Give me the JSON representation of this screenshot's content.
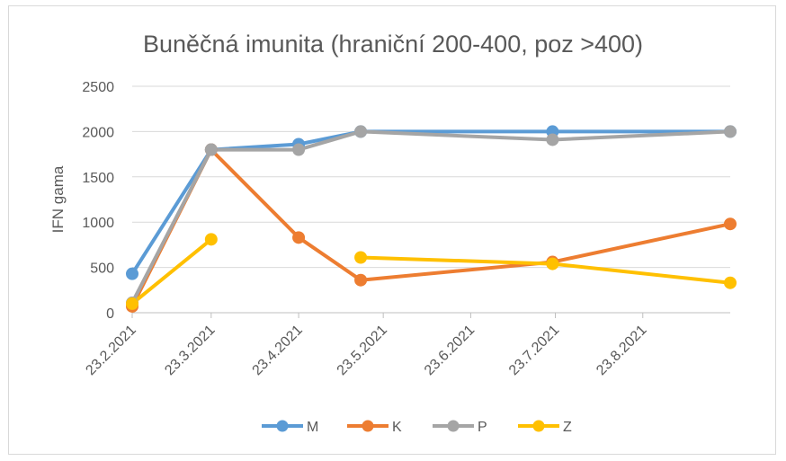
{
  "chart_data": {
    "type": "line",
    "title": "Buněčná imunita (hraniční 200-400, poz >400)",
    "ylabel": "IFN gama",
    "xlabel": "",
    "ylim": [
      0,
      2500
    ],
    "yticks": [
      0,
      500,
      1000,
      1500,
      2000,
      2500
    ],
    "xlim": [
      "2021-02-23",
      "2021-09-23"
    ],
    "xticks": [
      "23.2.2021",
      "23.3.2021",
      "23.4.2021",
      "23.5.2021",
      "23.6.2021",
      "23.7.2021",
      "23.8.2021"
    ],
    "xtick_dates": [
      "2021-02-23",
      "2021-03-23",
      "2021-04-23",
      "2021-05-23",
      "2021-06-23",
      "2021-07-23",
      "2021-08-23"
    ],
    "grid": true,
    "legend_position": "bottom",
    "series": [
      {
        "name": "M",
        "color": "#5B9BD5",
        "points": [
          [
            "2021-02-23",
            430
          ],
          [
            "2021-03-23",
            1800
          ],
          [
            "2021-04-23",
            1860
          ],
          [
            "2021-05-15",
            2000
          ],
          [
            "2021-07-22",
            2000
          ],
          [
            "2021-09-23",
            2000
          ]
        ]
      },
      {
        "name": "K",
        "color": "#ED7D31",
        "points": [
          [
            "2021-02-23",
            70
          ],
          [
            "2021-03-23",
            1800
          ],
          [
            "2021-04-23",
            830
          ],
          [
            "2021-05-15",
            360
          ],
          [
            "2021-07-22",
            560
          ],
          [
            "2021-09-23",
            980
          ]
        ]
      },
      {
        "name": "P",
        "color": "#A5A5A5",
        "points": [
          [
            "2021-02-23",
            110
          ],
          [
            "2021-03-23",
            1800
          ],
          [
            "2021-04-23",
            1800
          ],
          [
            "2021-05-15",
            2000
          ],
          [
            "2021-07-22",
            1910
          ],
          [
            "2021-09-23",
            2000
          ]
        ]
      },
      {
        "name": "Z",
        "color": "#FFC000",
        "segments": [
          [
            [
              "2021-02-23",
              100
            ],
            [
              "2021-03-23",
              810
            ]
          ],
          [
            [
              "2021-05-15",
              610
            ],
            [
              "2021-07-22",
              540
            ],
            [
              "2021-09-23",
              330
            ]
          ]
        ]
      }
    ]
  }
}
